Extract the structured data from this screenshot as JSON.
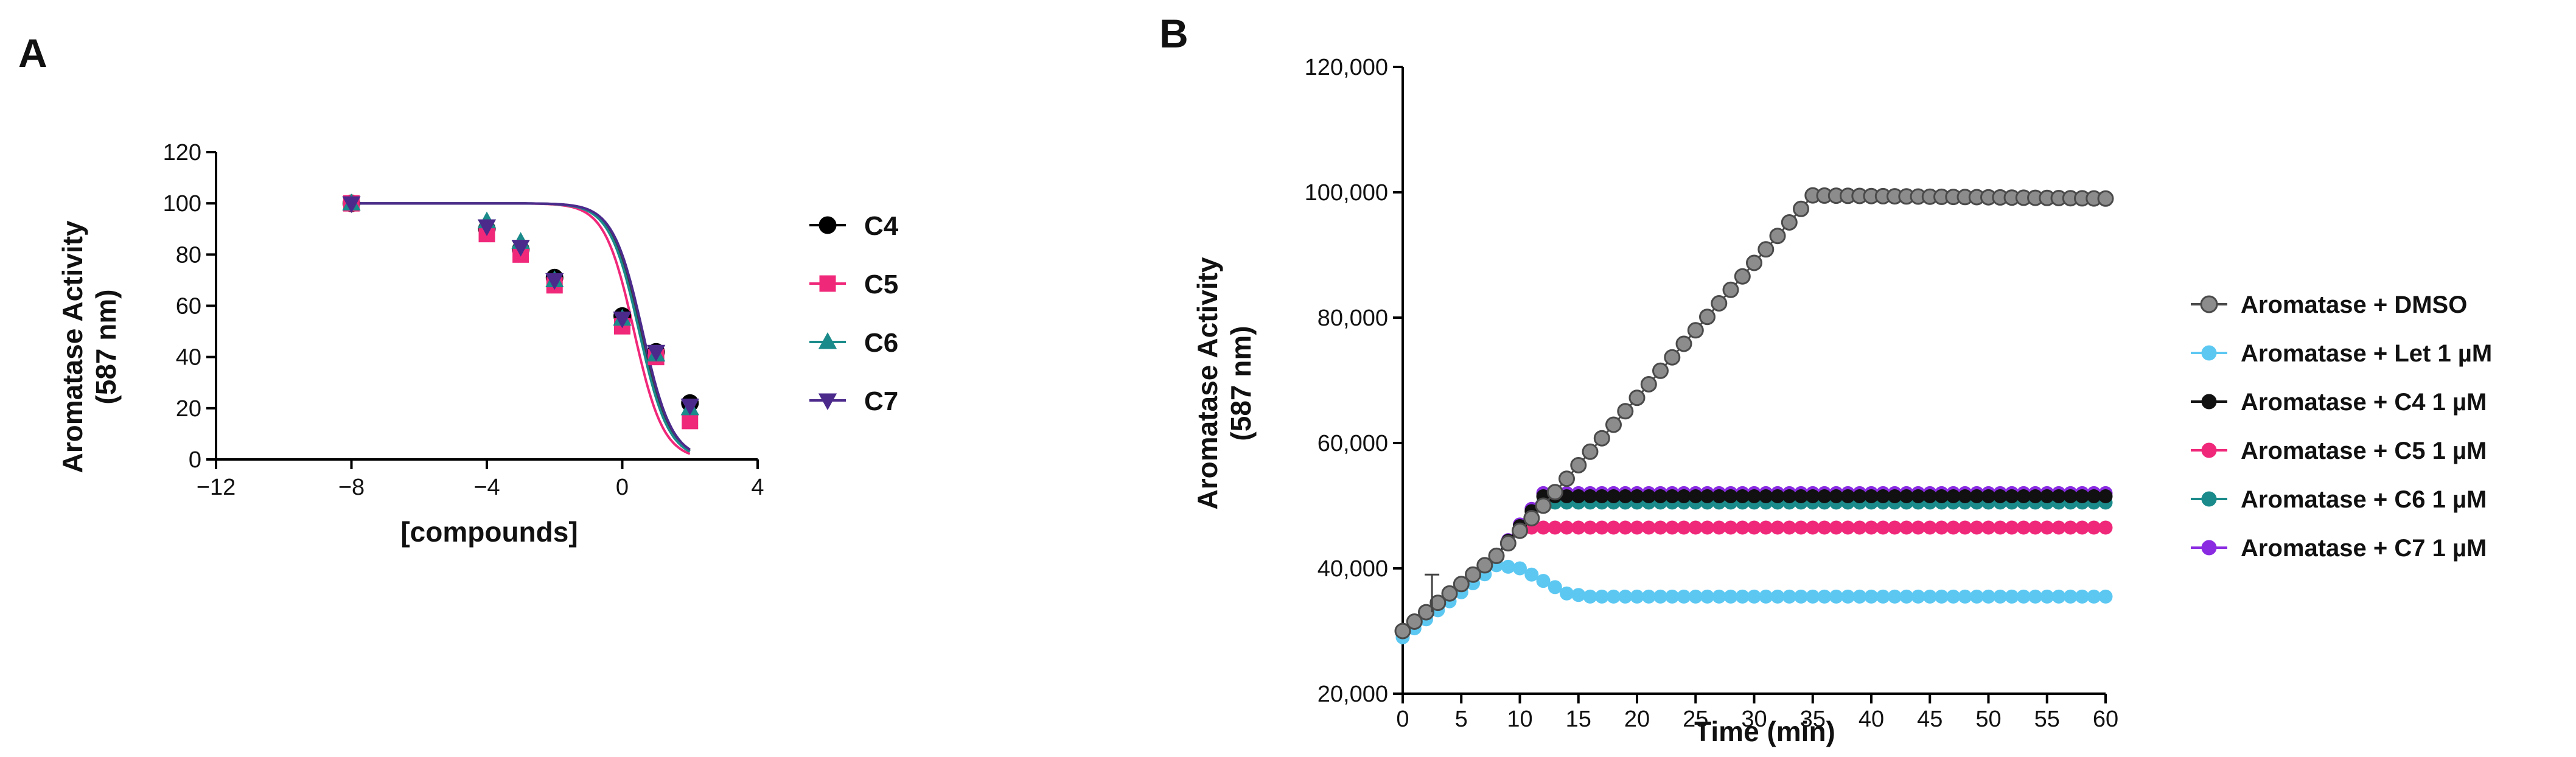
{
  "chart_data": [
    {
      "panel": "A",
      "type": "scatter",
      "xlabel": "[compounds]",
      "ylabel_lines": [
        "Aromatase Activity",
        "(587 nm)"
      ],
      "xlim": [
        -12,
        4
      ],
      "ylim": [
        0,
        120
      ],
      "xticks": [
        -12,
        -8,
        -4,
        0,
        4
      ],
      "xtick_labels": [
        "−12",
        "−8",
        "−4",
        "0",
        "4"
      ],
      "yticks": [
        0,
        20,
        40,
        60,
        80,
        100,
        120
      ],
      "ytick_labels": [
        "0",
        "20",
        "40",
        "60",
        "80",
        "100",
        "120"
      ],
      "legend_position": "right",
      "series": [
        {
          "name": "C4",
          "color": "#000000",
          "marker": "circle",
          "x": [
            -8,
            -4,
            -3,
            -2,
            0,
            1,
            2
          ],
          "y": [
            100,
            90,
            82,
            71,
            56,
            42,
            22
          ],
          "fit": {
            "top": 100,
            "bottom": 0,
            "logIC50": 0.55,
            "hill": 1.0,
            "color": "#3a3a3a"
          }
        },
        {
          "name": "C5",
          "color": "#f0287a",
          "marker": "square",
          "x": [
            -8,
            -4,
            -3,
            -2,
            0,
            1,
            2
          ],
          "y": [
            100,
            88,
            80,
            68,
            52,
            40,
            15
          ],
          "fit": {
            "top": 100,
            "bottom": 0,
            "logIC50": 0.35,
            "hill": 1.0,
            "color": "#f0287a"
          }
        },
        {
          "name": "C6",
          "color": "#1a8a8a",
          "marker": "triangle-up",
          "x": [
            -8,
            -4,
            -3,
            -2,
            0,
            1,
            2
          ],
          "y": [
            100,
            93,
            85,
            70,
            55,
            41,
            20
          ],
          "fit": {
            "top": 100,
            "bottom": 0,
            "logIC50": 0.5,
            "hill": 1.0,
            "color": "#1a8a8a"
          }
        },
        {
          "name": "C7",
          "color": "#4b2a8c",
          "marker": "triangle-down",
          "x": [
            -8,
            -4,
            -3,
            -2,
            0,
            1,
            2
          ],
          "y": [
            100,
            91,
            83,
            70,
            55,
            42,
            21
          ],
          "fit": {
            "top": 100,
            "bottom": 0,
            "logIC50": 0.6,
            "hill": 1.0,
            "color": "#4b2a8c"
          }
        }
      ]
    },
    {
      "panel": "B",
      "type": "line",
      "xlabel": "Time (min)",
      "ylabel_lines": [
        "Aromatase Activity",
        "(587 nm)"
      ],
      "xlim": [
        0,
        60
      ],
      "ylim": [
        20000,
        120000
      ],
      "xticks": [
        0,
        5,
        10,
        15,
        20,
        25,
        30,
        35,
        40,
        45,
        50,
        55,
        60
      ],
      "xtick_labels": [
        "0",
        "5",
        "10",
        "15",
        "20",
        "25",
        "30",
        "35",
        "40",
        "45",
        "50",
        "55",
        "60"
      ],
      "yticks": [
        20000,
        40000,
        60000,
        80000,
        100000,
        120000
      ],
      "ytick_labels": [
        "20,000",
        "40,000",
        "60,000",
        "80,000",
        "100,000",
        "120,000"
      ],
      "legend_position": "right",
      "error_bar": {
        "x": 2.5,
        "y": 36000,
        "err": 3000
      },
      "sampling": {
        "start": 0,
        "end": 60,
        "step": 1
      },
      "series": [
        {
          "name": "Aromatase + DMSO",
          "color": "#8c8c8c",
          "edge": "#4a4a4a",
          "marker_size": "large",
          "profile": [
            [
              0,
              30000
            ],
            [
              8,
              42000
            ],
            [
              12,
              50000
            ],
            [
              35,
              99500
            ],
            [
              60,
              99000
            ]
          ]
        },
        {
          "name": "Aromatase + Let 1 µM",
          "color": "#5cc8f2",
          "edge": "#5cc8f2",
          "marker_size": "small",
          "profile": [
            [
              0,
              29000
            ],
            [
              8,
              40500
            ],
            [
              10,
              40000
            ],
            [
              14,
              36000
            ],
            [
              16,
              35500
            ],
            [
              60,
              35500
            ]
          ]
        },
        {
          "name": "Aromatase + C4 1 µM",
          "color": "#111111",
          "edge": "#111111",
          "marker_size": "small",
          "profile": [
            [
              0,
              30000
            ],
            [
              8,
              42000
            ],
            [
              12,
              51500
            ],
            [
              60,
              51500
            ]
          ]
        },
        {
          "name": "Aromatase + C5 1 µM",
          "color": "#f0287a",
          "edge": "#f0287a",
          "marker_size": "small",
          "profile": [
            [
              0,
              30000
            ],
            [
              8,
              42000
            ],
            [
              10,
              46500
            ],
            [
              60,
              46500
            ]
          ]
        },
        {
          "name": "Aromatase + C6 1 µM",
          "color": "#1a8a8a",
          "edge": "#1a8a8a",
          "marker_size": "small",
          "profile": [
            [
              0,
              30000
            ],
            [
              8,
              42000
            ],
            [
              12,
              50500
            ],
            [
              60,
              50500
            ]
          ]
        },
        {
          "name": "Aromatase + C7 1 µM",
          "color": "#8a2be2",
          "edge": "#8a2be2",
          "marker_size": "small",
          "profile": [
            [
              0,
              30000
            ],
            [
              8,
              42000
            ],
            [
              12,
              52000
            ],
            [
              60,
              52000
            ]
          ]
        }
      ]
    }
  ]
}
